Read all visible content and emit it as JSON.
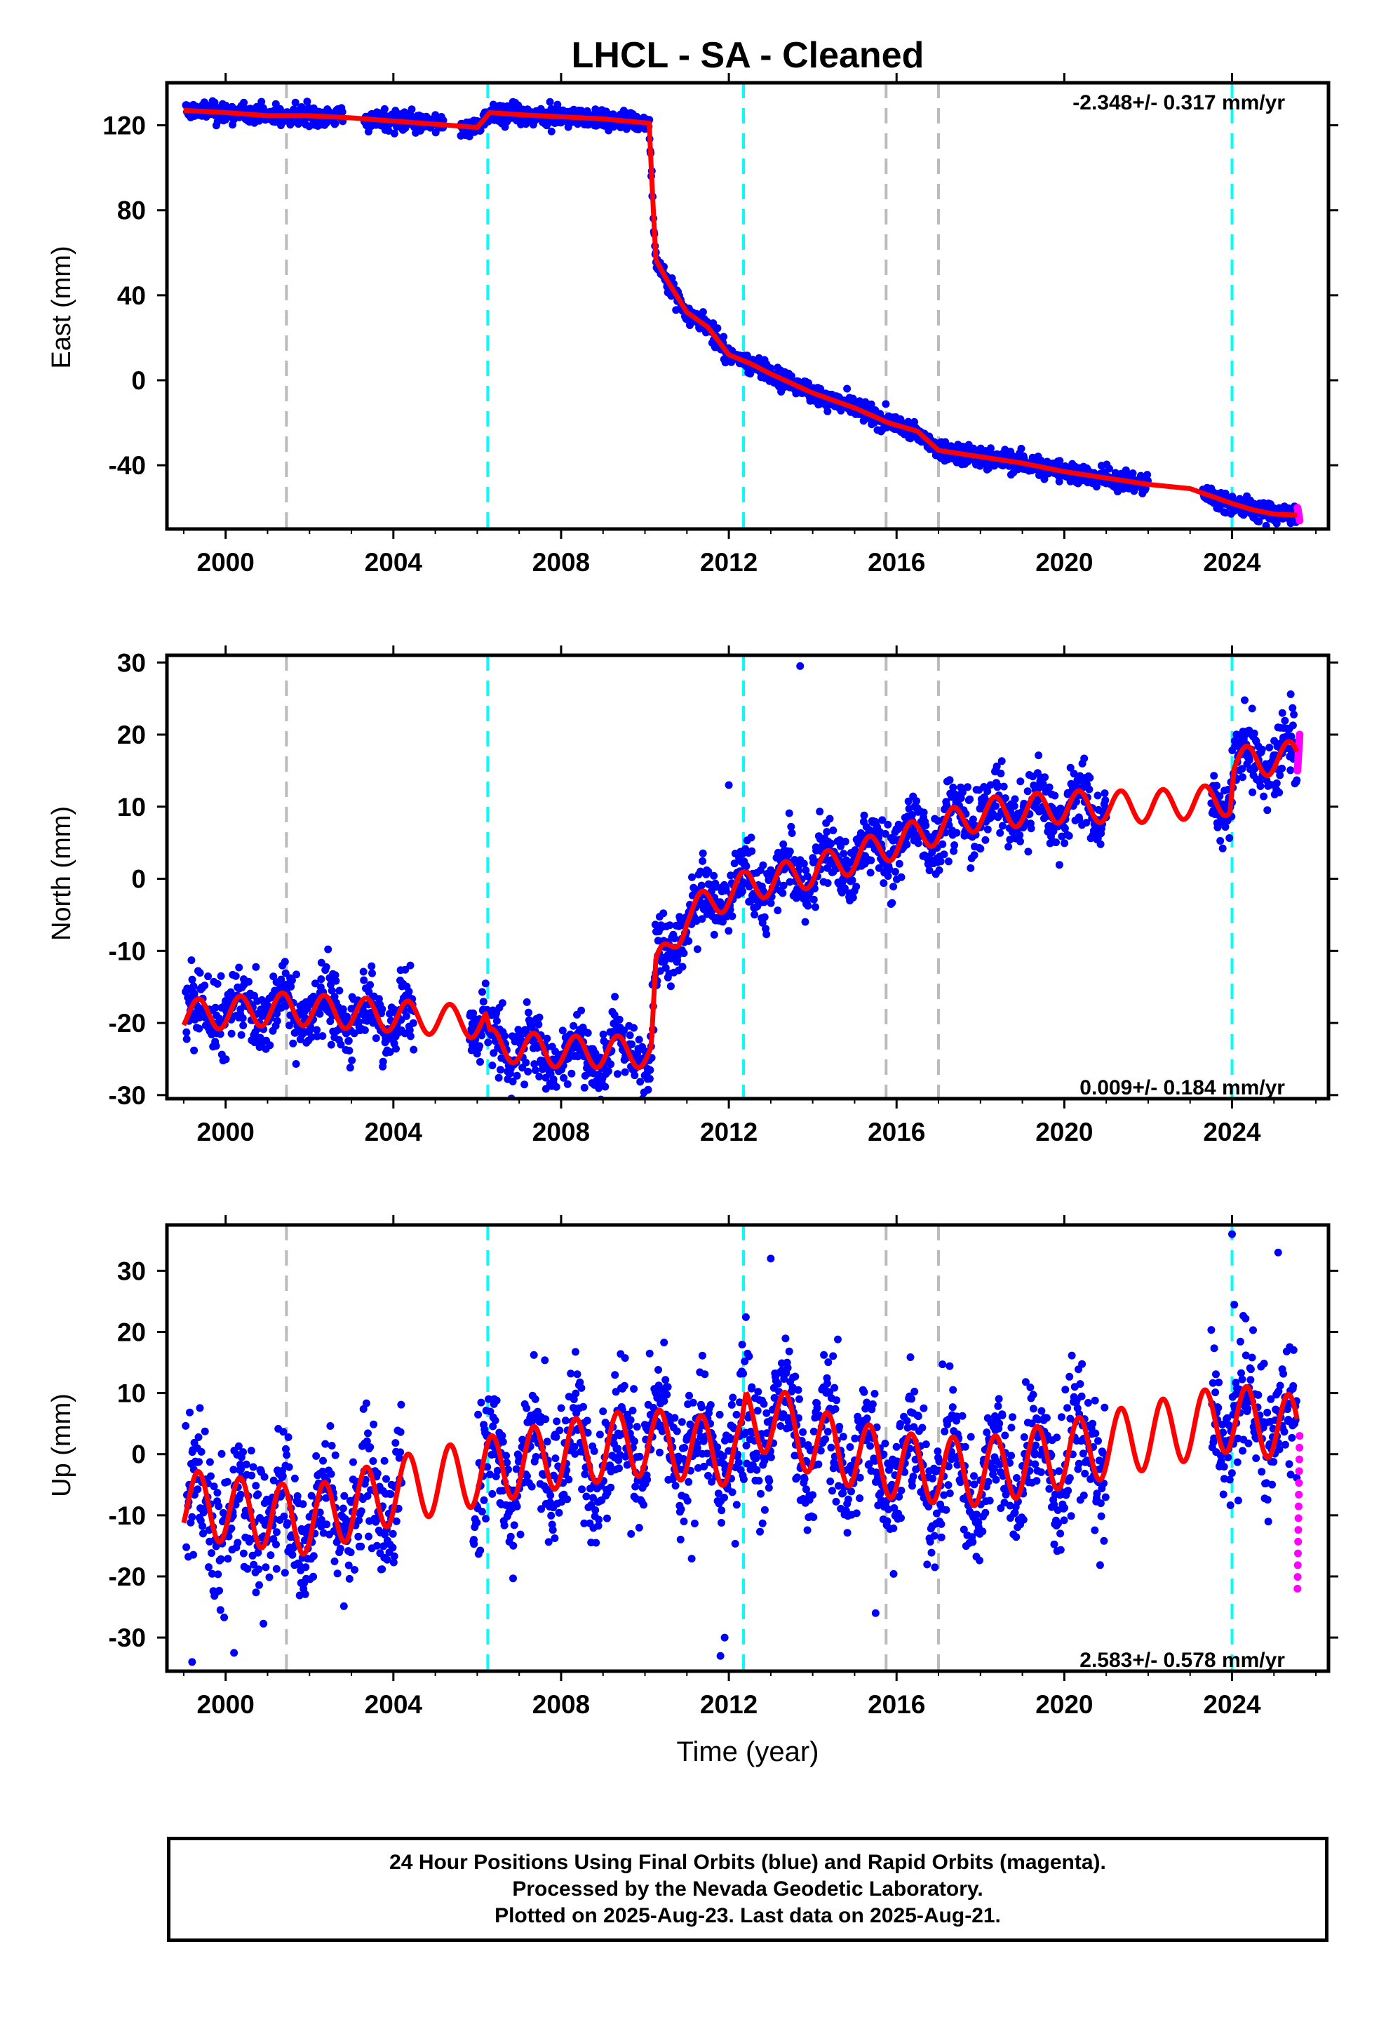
{
  "chart_data": {
    "type": "scatter",
    "title": "LHCL  - SA - Cleaned",
    "xlabel": "Time (year)",
    "xlim": [
      1998.6,
      2026.3
    ],
    "xticks": [
      2000,
      2004,
      2008,
      2012,
      2016,
      2020,
      2024
    ],
    "xtick_labels": [
      "2000",
      "2004",
      "2008",
      "2012",
      "2016",
      "2020",
      "2024"
    ],
    "colors": {
      "final_orbits": "#0000ff",
      "rapid_orbits": "#ff00ff",
      "model": "#ff0000",
      "equipment_change": "#bbbbbb",
      "earthquake": "#00ffff"
    },
    "gray_lines": [
      2001.45,
      2015.75,
      2017.0
    ],
    "cyan_lines": [
      2006.25,
      2012.35,
      2024.0
    ],
    "steps": [
      {
        "year": 2010.2,
        "de": -62,
        "dn": 10,
        "du": 0
      },
      {
        "year": 2012.35,
        "de": 0,
        "dn": 0,
        "du": 2
      }
    ],
    "panels": [
      {
        "name": "east",
        "ylabel": "East (mm)",
        "ylim": [
          -70,
          140
        ],
        "yticks": [
          120,
          80,
          40,
          0,
          -40
        ],
        "ytick_labels": [
          "120",
          "80",
          "40",
          "0",
          "-40"
        ],
        "rate_label": "-2.348+/- 0.317 mm/yr",
        "rate_position": "top-right",
        "model_points": [
          [
            1999.0,
            127
          ],
          [
            2000.0,
            126
          ],
          [
            2001.0,
            124.5
          ],
          [
            2002.0,
            124.5
          ],
          [
            2003.0,
            123.5
          ],
          [
            2004.0,
            122
          ],
          [
            2005.0,
            120.5
          ],
          [
            2006.0,
            119
          ],
          [
            2006.3,
            126
          ],
          [
            2007.0,
            125
          ],
          [
            2008.0,
            124
          ],
          [
            2009.0,
            123
          ],
          [
            2010.1,
            121
          ],
          [
            2010.25,
            57
          ],
          [
            2010.5,
            48
          ],
          [
            2011.0,
            32
          ],
          [
            2011.5,
            25
          ],
          [
            2012.0,
            12
          ],
          [
            2012.5,
            8
          ],
          [
            2013.0,
            3
          ],
          [
            2014.0,
            -6
          ],
          [
            2015.0,
            -13
          ],
          [
            2015.8,
            -20
          ],
          [
            2016.5,
            -24
          ],
          [
            2017.0,
            -33
          ],
          [
            2018.0,
            -36
          ],
          [
            2019.0,
            -39
          ],
          [
            2020.0,
            -43
          ],
          [
            2021.0,
            -46
          ],
          [
            2022.0,
            -49
          ],
          [
            2023.0,
            -51
          ],
          [
            2024.0,
            -58
          ],
          [
            2024.5,
            -61
          ],
          [
            2025.0,
            -63
          ],
          [
            2025.6,
            -63.5
          ]
        ],
        "spread": 2.5,
        "gaps": [
          [
            2002.8,
            2003.3
          ],
          [
            2005.2,
            2005.6
          ],
          [
            2022.0,
            2023.3
          ]
        ],
        "rapid_values": [
          -60,
          -66
        ]
      },
      {
        "name": "north",
        "ylabel": "North (mm)",
        "ylim": [
          -30.5,
          31
        ],
        "yticks": [
          30,
          20,
          10,
          0,
          -10,
          -20,
          -30
        ],
        "ytick_labels": [
          "30",
          "20",
          "10",
          "0",
          "-10",
          "-20",
          "-30"
        ],
        "rate_label": "0.009+/- 0.184 mm/yr",
        "rate_position": "bottom-right",
        "model_points": [
          [
            1999.0,
            -19
          ],
          [
            2001.45,
            -18
          ],
          [
            2004.0,
            -19
          ],
          [
            2006.2,
            -20
          ],
          [
            2006.3,
            -23
          ],
          [
            2008.0,
            -24
          ],
          [
            2010.15,
            -24
          ],
          [
            2010.25,
            -13
          ],
          [
            2011.0,
            -5
          ],
          [
            2012.0,
            -2
          ],
          [
            2012.4,
            -1
          ],
          [
            2014.0,
            1
          ],
          [
            2016.0,
            5
          ],
          [
            2018.0,
            9
          ],
          [
            2020.0,
            10
          ],
          [
            2022.0,
            10
          ],
          [
            2023.95,
            11
          ],
          [
            2024.05,
            16
          ],
          [
            2025.6,
            17
          ]
        ],
        "annual_amplitude": 2.2,
        "spread": 2.6,
        "gaps": [
          [
            2004.5,
            2005.8
          ],
          [
            2021.0,
            2023.5
          ]
        ],
        "rapid_values": [
          15,
          20
        ],
        "outliers": [
          [
            2013.7,
            29.5
          ],
          [
            2012.0,
            13
          ],
          [
            2025.2,
            23
          ]
        ]
      },
      {
        "name": "up",
        "ylabel": "Up (mm)",
        "ylim": [
          -35.5,
          37.5
        ],
        "yticks": [
          30,
          20,
          10,
          0,
          -10,
          -20,
          -30
        ],
        "ytick_labels": [
          "30",
          "20",
          "10",
          "0",
          "-10",
          "-20",
          "-30"
        ],
        "rate_label": "2.583+/- 0.578 mm/yr",
        "rate_position": "bottom-right",
        "model_points": [
          [
            1999.0,
            -8
          ],
          [
            2002.0,
            -11
          ],
          [
            2004.0,
            -6
          ],
          [
            2006.0,
            -3
          ],
          [
            2008.0,
            0
          ],
          [
            2010.0,
            2
          ],
          [
            2012.3,
            0
          ],
          [
            2012.4,
            5
          ],
          [
            2013.0,
            6
          ],
          [
            2014.0,
            2
          ],
          [
            2016.0,
            -2
          ],
          [
            2018.0,
            -3
          ],
          [
            2020.0,
            0
          ],
          [
            2022.0,
            3
          ],
          [
            2024.0,
            6
          ],
          [
            2025.6,
            4
          ]
        ],
        "annual_amplitude": 5.5,
        "spread": 6,
        "gaps": [
          [
            2004.2,
            2005.9
          ],
          [
            2021.0,
            2023.5
          ]
        ],
        "rapid_values": [
          -22,
          3
        ],
        "outliers": [
          [
            2024.0,
            36
          ],
          [
            2025.1,
            33
          ],
          [
            2013.0,
            32
          ],
          [
            1999.2,
            -34
          ],
          [
            2000.2,
            -32.5
          ],
          [
            2011.8,
            -33
          ],
          [
            2011.9,
            -30
          ],
          [
            2015.5,
            -26
          ]
        ]
      }
    ]
  },
  "footer": {
    "line1": "24 Hour Positions Using Final Orbits (blue) and Rapid Orbits (magenta).",
    "line2": "Processed by the Nevada Geodetic Laboratory.",
    "line3": "Plotted on 2025-Aug-23. Last data on 2025-Aug-21."
  }
}
